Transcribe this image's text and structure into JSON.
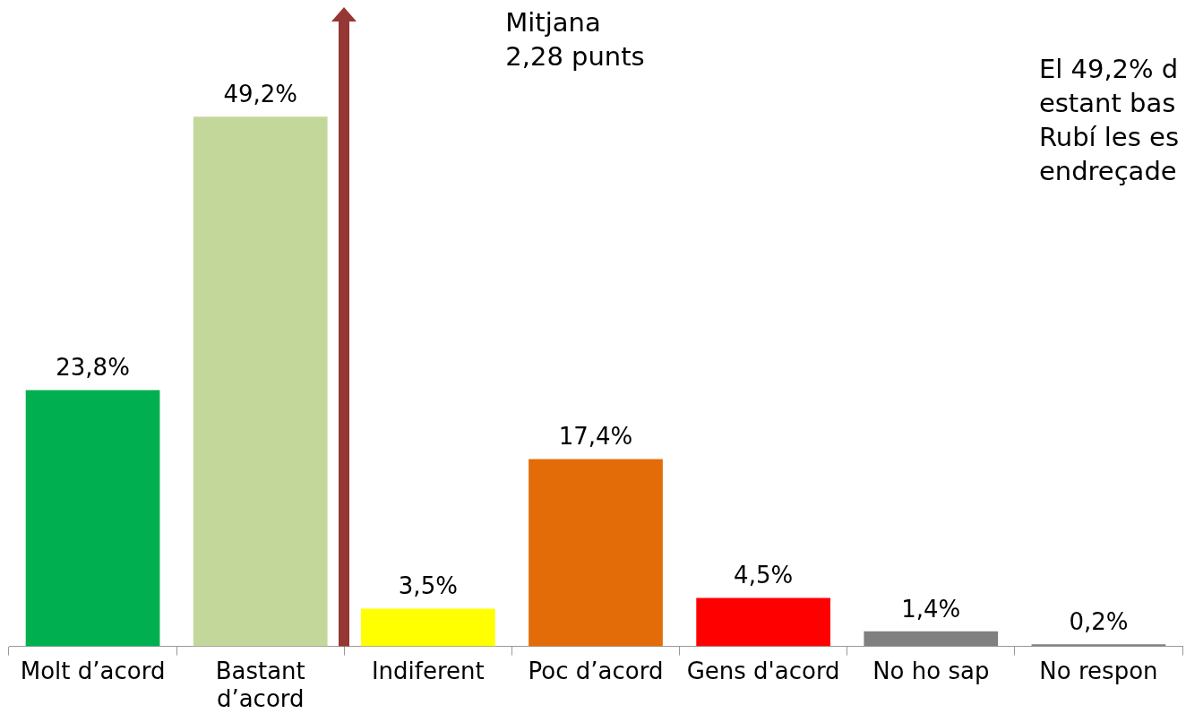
{
  "chart_data": {
    "type": "bar",
    "categories": [
      "Molt d’acord",
      "Bastant d’acord",
      "Indiferent",
      "Poc d’acord",
      "Gens d'acord",
      "No ho sap",
      "No respon"
    ],
    "values": [
      23.8,
      49.2,
      3.5,
      17.4,
      4.5,
      1.4,
      0.2
    ],
    "value_labels": [
      "23,8%",
      "49,2%",
      "3,5%",
      "17,4%",
      "4,5%",
      "1,4%",
      "0,2%"
    ],
    "colors": [
      "#00b050",
      "#c4d79b",
      "#ffff00",
      "#e36c09",
      "#ff0000",
      "#808080",
      "#808080"
    ],
    "annotations": [
      "Mitjana\n2,28 punts",
      "El 49,2% d\nestant bas\nRubí les es\nendreçade"
    ],
    "grid": false,
    "legend": false
  }
}
